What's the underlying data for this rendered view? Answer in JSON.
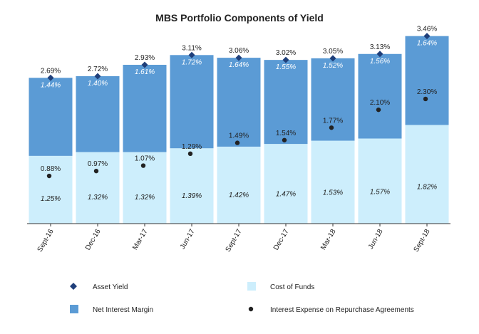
{
  "chart_data": {
    "type": "bar",
    "title": "MBS Portfolio Components of Yield",
    "categories": [
      "Sept-16",
      "Dec-16",
      "Mar-17",
      "Jun-17",
      "Sept-17",
      "Dec-17",
      "Mar-18",
      "Jun-18",
      "Sept-18"
    ],
    "stacked": true,
    "series": [
      {
        "name": "Cost of Funds",
        "kind": "bar",
        "color": "#cdeefc",
        "values": [
          1.25,
          1.32,
          1.32,
          1.39,
          1.42,
          1.47,
          1.53,
          1.57,
          1.82
        ],
        "labels": [
          "1.25%",
          "1.32%",
          "1.32%",
          "1.39%",
          "1.42%",
          "1.47%",
          "1.53%",
          "1.57%",
          "1.82%"
        ]
      },
      {
        "name": "Net Interest Margin",
        "kind": "bar",
        "color": "#5b9bd5",
        "values": [
          1.44,
          1.4,
          1.61,
          1.72,
          1.64,
          1.55,
          1.52,
          1.56,
          1.64
        ],
        "labels": [
          "1.44%",
          "1.40%",
          "1.61%",
          "1.72%",
          "1.64%",
          "1.55%",
          "1.52%",
          "1.56%",
          "1.64%"
        ]
      },
      {
        "name": "Asset Yield",
        "kind": "diamond",
        "color": "#1f3f7a",
        "values": [
          2.69,
          2.72,
          2.93,
          3.11,
          3.06,
          3.02,
          3.05,
          3.13,
          3.46
        ],
        "labels": [
          "2.69%",
          "2.72%",
          "2.93%",
          "3.11%",
          "3.06%",
          "3.02%",
          "3.05%",
          "3.13%",
          "3.46%"
        ]
      },
      {
        "name": "Interest Expense on Repurchase Agreements",
        "kind": "dot",
        "color": "#222222",
        "values": [
          0.88,
          0.97,
          1.07,
          1.29,
          1.49,
          1.54,
          1.77,
          2.1,
          2.3
        ],
        "labels": [
          "0.88%",
          "0.97%",
          "1.07%",
          "1.29%",
          "1.49%",
          "1.54%",
          "1.77%",
          "2.10%",
          "2.30%"
        ]
      }
    ],
    "ylim": [
      0,
      3.6
    ],
    "xlabel": "",
    "ylabel": "",
    "grid": false,
    "legend": [
      {
        "name": "Asset Yield",
        "marker": "diamond"
      },
      {
        "name": "Cost of Funds",
        "marker": "square-light"
      },
      {
        "name": "Net Interest Margin",
        "marker": "square-dark"
      },
      {
        "name": "Interest Expense on Repurchase Agreements",
        "marker": "dot"
      }
    ]
  }
}
